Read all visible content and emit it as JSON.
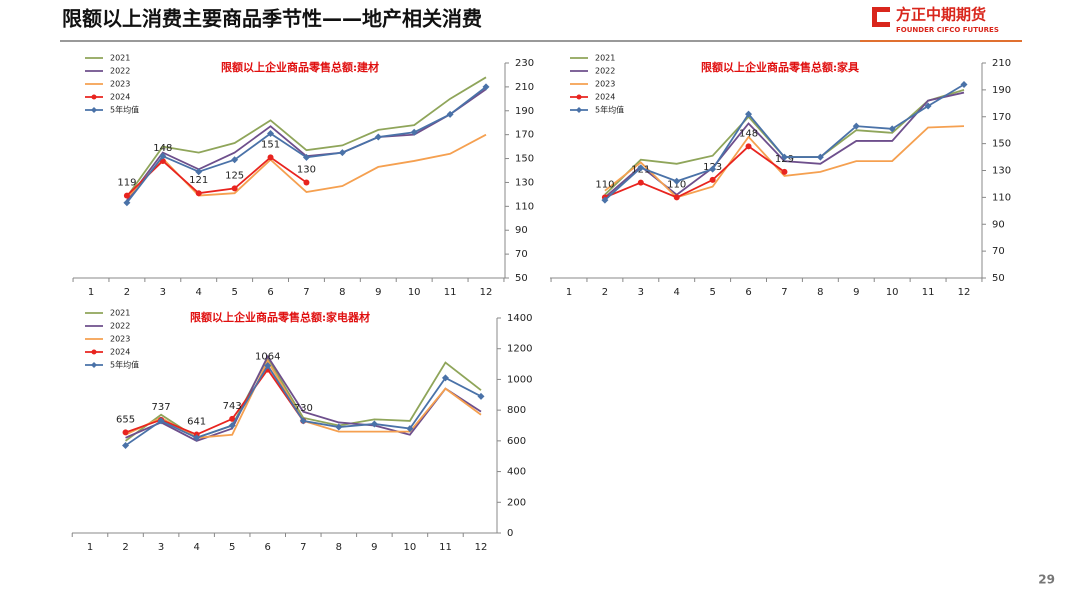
{
  "header": {
    "title": "限额以上消费主要商品季节性——地产相关消费",
    "logo_name": "方正中期期货",
    "logo_sub": "FOUNDER CIFCO FUTURES"
  },
  "page_number": "29",
  "chart_data": [
    {
      "type": "line",
      "title": "限额以上企业商品零售总额:建材",
      "categories": [
        "1",
        "2",
        "3",
        "4",
        "5",
        "6",
        "7",
        "8",
        "9",
        "10",
        "11",
        "12"
      ],
      "ylim": [
        50,
        230
      ],
      "yticks": [
        50,
        70,
        90,
        110,
        130,
        150,
        170,
        190,
        210,
        230
      ],
      "series": [
        {
          "name": "2021",
          "color": "#8fa55a",
          "marker": "none",
          "values": [
            null,
            118,
            160,
            155,
            163,
            182,
            157,
            161,
            174,
            178,
            200,
            218
          ]
        },
        {
          "name": "2022",
          "color": "#6e4f8c",
          "marker": "none",
          "values": [
            null,
            115,
            155,
            141,
            155,
            177,
            152,
            155,
            168,
            170,
            187,
            208
          ]
        },
        {
          "name": "2023",
          "color": "#f5a050",
          "marker": "none",
          "values": [
            null,
            117,
            150,
            119,
            121,
            149,
            122,
            127,
            143,
            148,
            154,
            170
          ]
        },
        {
          "name": "2024",
          "color": "#e8241f",
          "marker": "circle",
          "labels": true,
          "values": [
            null,
            119,
            148,
            121,
            125,
            151,
            130,
            null,
            null,
            null,
            null,
            null
          ]
        },
        {
          "name": "5年均值",
          "color": "#4a72a8",
          "marker": "diamond",
          "values": [
            null,
            113,
            152,
            139,
            149,
            171,
            151,
            155,
            168,
            172,
            187,
            210
          ]
        }
      ]
    },
    {
      "type": "line",
      "title": "限额以上企业商品零售总额:家具",
      "categories": [
        "1",
        "2",
        "3",
        "4",
        "5",
        "6",
        "7",
        "8",
        "9",
        "10",
        "11",
        "12"
      ],
      "ylim": [
        50,
        210
      ],
      "yticks": [
        50,
        70,
        90,
        110,
        130,
        150,
        170,
        190,
        210
      ],
      "series": [
        {
          "name": "2021",
          "color": "#8fa55a",
          "marker": "none",
          "values": [
            null,
            112,
            138,
            135,
            141,
            170,
            140,
            140,
            160,
            158,
            182,
            190
          ]
        },
        {
          "name": "2022",
          "color": "#6e4f8c",
          "marker": "none",
          "values": [
            null,
            110,
            133,
            112,
            132,
            165,
            137,
            135,
            152,
            152,
            182,
            188
          ]
        },
        {
          "name": "2023",
          "color": "#f5a050",
          "marker": "none",
          "values": [
            null,
            115,
            136,
            110,
            118,
            155,
            126,
            129,
            137,
            137,
            162,
            163
          ]
        },
        {
          "name": "2024",
          "color": "#e8241f",
          "marker": "circle",
          "labels": true,
          "values": [
            null,
            110,
            121,
            110,
            123,
            148,
            129,
            null,
            null,
            null,
            null,
            null
          ]
        },
        {
          "name": "5年均值",
          "color": "#4a72a8",
          "marker": "diamond",
          "values": [
            null,
            108,
            132,
            122,
            131,
            172,
            140,
            140,
            163,
            161,
            178,
            194
          ]
        }
      ]
    },
    {
      "type": "line",
      "title": "限额以上企业商品零售总额:家电器材",
      "categories": [
        "1",
        "2",
        "3",
        "4",
        "5",
        "6",
        "7",
        "8",
        "9",
        "10",
        "11",
        "12"
      ],
      "ylim": [
        0,
        1400
      ],
      "yticks": [
        0,
        200,
        400,
        600,
        800,
        1000,
        1200,
        1400
      ],
      "series": [
        {
          "name": "2021",
          "color": "#8fa55a",
          "marker": "none",
          "values": [
            null,
            600,
            770,
            620,
            700,
            1140,
            750,
            700,
            740,
            730,
            1110,
            930
          ]
        },
        {
          "name": "2022",
          "color": "#6e4f8c",
          "marker": "none",
          "values": [
            null,
            620,
            720,
            600,
            680,
            1150,
            790,
            720,
            700,
            640,
            940,
            790
          ]
        },
        {
          "name": "2023",
          "color": "#f5a050",
          "marker": "none",
          "values": [
            null,
            640,
            750,
            620,
            640,
            1120,
            730,
            660,
            660,
            660,
            940,
            770
          ]
        },
        {
          "name": "2024",
          "color": "#e8241f",
          "marker": "circle",
          "labels": true,
          "values": [
            null,
            655,
            737,
            641,
            743,
            1064,
            730,
            null,
            null,
            null,
            null,
            null
          ]
        },
        {
          "name": "5年均值",
          "color": "#4a72a8",
          "marker": "diamond",
          "values": [
            null,
            570,
            730,
            620,
            700,
            1090,
            730,
            690,
            710,
            680,
            1010,
            890
          ]
        }
      ]
    }
  ]
}
